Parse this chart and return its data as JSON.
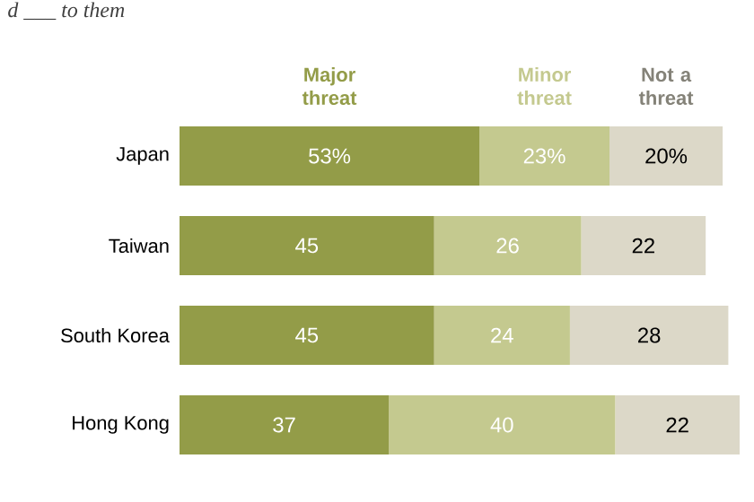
{
  "chart_data": {
    "type": "bar",
    "orientation": "horizontal",
    "stacked": true,
    "subtitle": "d ___ to them",
    "legend": "top",
    "categories": [
      "Japan",
      "Taiwan",
      "South Korea",
      "Hong Kong"
    ],
    "series": [
      {
        "name": "Major threat",
        "color": "#939c48",
        "values": [
          53,
          45,
          45,
          37
        ],
        "value_labels": [
          "53%",
          "45",
          "45",
          "37"
        ]
      },
      {
        "name": "Minor threat",
        "color": "#c4c98f",
        "values": [
          23,
          26,
          24,
          40
        ],
        "value_labels": [
          "23%",
          "26",
          "24",
          "40"
        ]
      },
      {
        "name": "Not a threat",
        "color": "#dcd8c8",
        "values": [
          20,
          22,
          28,
          22
        ],
        "value_labels": [
          "20%",
          "22",
          "28",
          "22"
        ]
      }
    ]
  }
}
